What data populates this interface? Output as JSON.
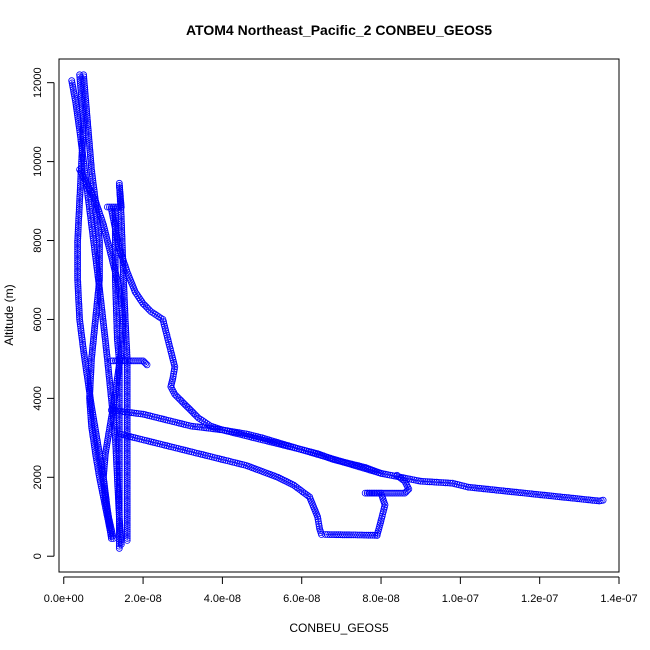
{
  "chart_data": {
    "type": "scatter",
    "title": "ATOM4 Northeast_Pacific_2 CONBEU_GEOS5",
    "xlabel": "CONBEU_GEOS5",
    "ylabel": "Altitude (m)",
    "xlim": [
      -1.2e-09,
      1.4e-07
    ],
    "ylim": [
      -400,
      12600
    ],
    "x_ticks": [
      0,
      2e-08,
      4e-08,
      6e-08,
      8e-08,
      1e-07,
      1.2e-07,
      1.4e-07
    ],
    "x_tick_labels": [
      "0.0e+00",
      "2.0e-08",
      "4.0e-08",
      "6.0e-08",
      "8.0e-08",
      "1.0e-07",
      "1.2e-07",
      "1.4e-07"
    ],
    "y_ticks": [
      0,
      2000,
      4000,
      6000,
      8000,
      10000,
      12000
    ],
    "y_tick_labels": [
      "0",
      "2000",
      "4000",
      "6000",
      "8000",
      "10000",
      "12000"
    ],
    "grid": false,
    "marker": "open-circle",
    "color": "#0000ff",
    "series": [
      {
        "x": [
          2e-09,
          3e-09,
          4e-09,
          5e-09,
          6e-09,
          7e-09,
          8e-09,
          9e-09,
          1e-08,
          1.1e-08,
          1.2e-08,
          1.3e-08,
          1.35e-08,
          1.4e-08,
          1.45e-08
        ],
        "y": [
          12050,
          11500,
          10800,
          10000,
          9200,
          8400,
          7600,
          6800,
          5900,
          5000,
          4000,
          3000,
          2000,
          1000,
          300
        ]
      },
      {
        "x": [
          4e-09,
          5e-09,
          4.5e-09,
          4e-09,
          3.5e-09,
          3.5e-09,
          4e-09,
          5e-09,
          6e-09,
          7e-09,
          8e-09,
          9e-09,
          1e-08,
          1.1e-08,
          1.2e-08
        ],
        "y": [
          12200,
          11000,
          10000,
          9000,
          8000,
          7000,
          6000,
          5200,
          4500,
          3800,
          3200,
          2600,
          2000,
          1200,
          450
        ]
      },
      {
        "x": [
          5e-09,
          5.5e-09,
          6e-09,
          6.5e-09,
          7e-09,
          8e-09,
          9e-09,
          9e-09,
          8e-09,
          7e-09,
          6.5e-09,
          7e-09,
          8e-09,
          9e-09,
          1e-08,
          1.1e-08,
          1.2e-08
        ],
        "y": [
          12200,
          11600,
          11000,
          10400,
          9800,
          9000,
          8000,
          7000,
          6000,
          5000,
          4000,
          3300,
          2600,
          2000,
          1500,
          1000,
          500
        ]
      },
      {
        "x": [
          4e-09,
          6e-09,
          8e-09,
          1e-08,
          1.2e-08,
          1.4e-08,
          1.5e-08,
          1.45e-08,
          1.35e-08,
          1.25e-08,
          1.15e-08,
          1.05e-08,
          1e-08,
          1.05e-08,
          1.15e-08,
          1.25e-08
        ],
        "y": [
          9800,
          9400,
          9000,
          8400,
          7600,
          6800,
          6000,
          5200,
          4500,
          3800,
          3200,
          2600,
          2000,
          1400,
          900,
          450
        ]
      },
      {
        "x": [
          1.1e-08,
          1.3e-08,
          1.45e-08,
          1.4e-08,
          1.45e-08,
          1.5e-08,
          1.55e-08,
          1.6e-08,
          1.6e-08,
          1.6e-08,
          1.6e-08,
          1.6e-08
        ],
        "y": [
          8850,
          8850,
          8850,
          9450,
          8600,
          7200,
          6000,
          5000,
          4000,
          3000,
          2000,
          400
        ]
      },
      {
        "x": [
          1.3e-08,
          1.3e-08,
          1.35e-08,
          1.4e-08,
          1.4e-08,
          1.4e-08,
          1.4e-08,
          1.4e-08
        ],
        "y": [
          8800,
          7000,
          5500,
          4950,
          3500,
          2000,
          1000,
          200
        ]
      },
      {
        "x": [
          1.2e-08,
          1.3e-08,
          1.4e-08,
          1.5e-08,
          1.6e-08,
          1.7e-08,
          1.8e-08,
          1.9e-08,
          2e-08,
          2.1e-08
        ],
        "y": [
          4950,
          4950,
          4950,
          4950,
          4950,
          4950,
          4950,
          4950,
          4950,
          4850
        ]
      },
      {
        "x": [
          1.2e-08,
          1.3e-08,
          1.4e-08,
          1.6e-08,
          1.8e-08,
          2e-08,
          2.2e-08,
          2.5e-08,
          2.6e-08,
          2.7e-08,
          2.8e-08,
          2.75e-08,
          2.7e-08,
          2.8e-08,
          3.1e-08,
          3.4e-08,
          3.7e-08,
          4e-08,
          4.3e-08,
          4.6e-08,
          5e-08,
          5.5e-08,
          6e-08,
          6.5e-08,
          7e-08,
          7.5e-08,
          8e-08,
          8.5e-08,
          9e-08,
          9.8e-08,
          1.02e-07,
          1.35e-07,
          1.36e-07
        ],
        "y": [
          8800,
          8300,
          7800,
          7200,
          6700,
          6400,
          6200,
          6000,
          5600,
          5200,
          4800,
          4500,
          4300,
          4100,
          3800,
          3500,
          3300,
          3200,
          3150,
          3100,
          3000,
          2850,
          2700,
          2550,
          2400,
          2250,
          2100,
          2000,
          1900,
          1850,
          1750,
          1400,
          1420
        ]
      },
      {
        "x": [
          1.4e-08,
          1.8e-08,
          2.2e-08,
          2.6e-08,
          3e-08,
          3.4e-08,
          3.8e-08,
          4.2e-08,
          4.6e-08,
          5e-08,
          5.4e-08,
          5.8e-08,
          6.2e-08,
          6.4e-08,
          6.45e-08,
          6.5e-08
        ],
        "y": [
          3100,
          3000,
          2900,
          2800,
          2700,
          2600,
          2500,
          2400,
          2300,
          2150,
          2000,
          1800,
          1500,
          1000,
          700,
          550
        ]
      },
      {
        "x": [
          6.6e-08,
          7.3e-08,
          7.9e-08
        ],
        "y": [
          550,
          540,
          530
        ]
      },
      {
        "x": [
          7.9e-08,
          8e-08,
          8.1e-08,
          8e-08,
          7.6e-08,
          7.8e-08,
          8e-08,
          8.2e-08,
          8.4e-08,
          8.6e-08,
          8.7e-08,
          8.6e-08,
          8.4e-08
        ],
        "y": [
          530,
          900,
          1300,
          1600,
          1600,
          1600,
          1600,
          1600,
          1600,
          1600,
          1700,
          1900,
          2050
        ]
      },
      {
        "x": [
          1.2e-08,
          1.6e-08,
          2e-08,
          2.4e-08,
          2.8e-08,
          3.2e-08,
          3.6e-08,
          4e-08,
          4.4e-08,
          4.8e-08,
          5.2e-08,
          5.6e-08,
          6e-08,
          6.4e-08,
          6.8e-08,
          7.2e-08,
          7.6e-08,
          8e-08
        ],
        "y": [
          3700,
          3650,
          3600,
          3500,
          3400,
          3300,
          3250,
          3200,
          3100,
          3000,
          2900,
          2800,
          2700,
          2600,
          2450,
          2350,
          2250,
          2100
        ]
      }
    ]
  }
}
